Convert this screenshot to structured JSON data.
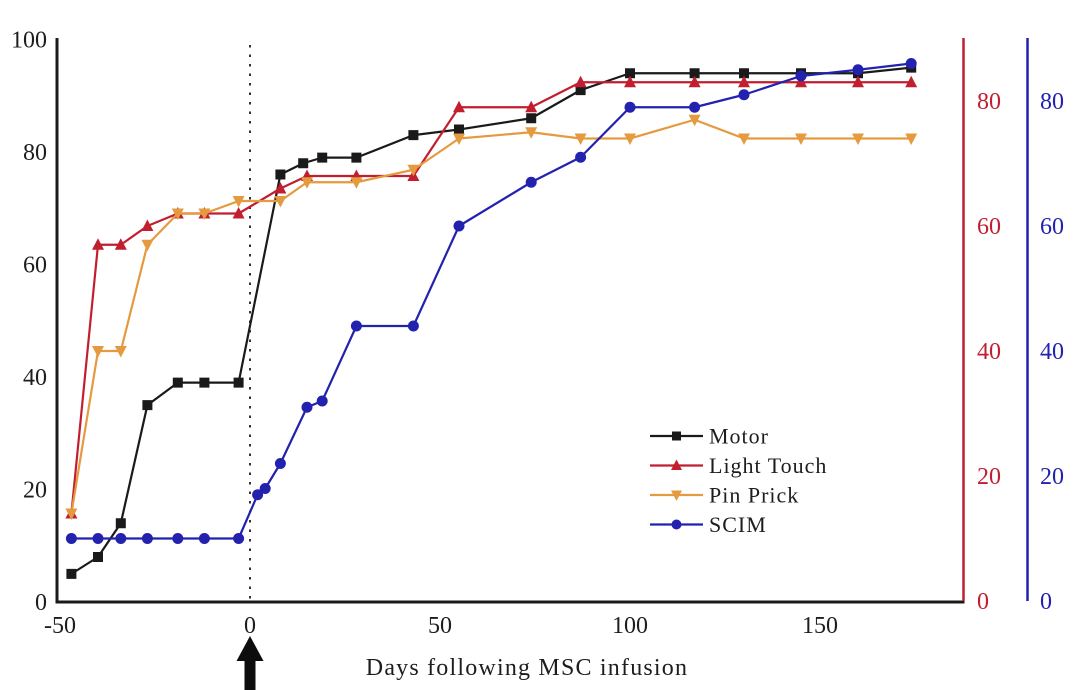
{
  "chart_data": {
    "type": "line",
    "title": "",
    "xlabel": "Days following MSC infusion",
    "x_ticks": [
      -50,
      0,
      50,
      100,
      150
    ],
    "x_range": [
      -51,
      188
    ],
    "infusion_marker_day": 0,
    "grid": "off",
    "axes": {
      "left": {
        "color": "#1a1a1a",
        "ticks": [
          0,
          20,
          40,
          60,
          80,
          100
        ],
        "range": [
          0,
          100
        ]
      },
      "right_red": {
        "color": "#c11f30",
        "ticks": [
          0,
          20,
          40,
          60,
          80
        ],
        "range": [
          0,
          90
        ]
      },
      "right_blue": {
        "color": "#2222ae",
        "ticks": [
          0,
          20,
          40,
          60,
          80
        ],
        "range": [
          0,
          90
        ]
      }
    },
    "legend": {
      "position": "right-center",
      "items": [
        "Motor",
        "Light Touch",
        "Pin Prick",
        "SCIM"
      ]
    },
    "series": [
      {
        "name": "Motor",
        "color": "#1a1a1a",
        "marker": "square",
        "axis": "left",
        "points": [
          [
            -47,
            5
          ],
          [
            -40,
            8
          ],
          [
            -34,
            14
          ],
          [
            -27,
            35
          ],
          [
            -19,
            39
          ],
          [
            -12,
            39
          ],
          [
            -3,
            39
          ],
          [
            8,
            76
          ],
          [
            14,
            78
          ],
          [
            19,
            79
          ],
          [
            28,
            79
          ],
          [
            43,
            83
          ],
          [
            55,
            84
          ],
          [
            74,
            86
          ],
          [
            87,
            91
          ],
          [
            100,
            94
          ],
          [
            117,
            94
          ],
          [
            130,
            94
          ],
          [
            145,
            94
          ],
          [
            160,
            94
          ],
          [
            174,
            95
          ]
        ]
      },
      {
        "name": "Light Touch",
        "color": "#c11f30",
        "marker": "triangle-up",
        "axis": "right",
        "points": [
          [
            -47,
            14
          ],
          [
            -40,
            57
          ],
          [
            -34,
            57
          ],
          [
            -27,
            60
          ],
          [
            -19,
            62
          ],
          [
            -12,
            62
          ],
          [
            -3,
            62
          ],
          [
            8,
            66
          ],
          [
            15,
            68
          ],
          [
            28,
            68
          ],
          [
            43,
            68
          ],
          [
            55,
            79
          ],
          [
            74,
            79
          ],
          [
            87,
            83
          ],
          [
            100,
            83
          ],
          [
            117,
            83
          ],
          [
            130,
            83
          ],
          [
            145,
            83
          ],
          [
            160,
            83
          ],
          [
            174,
            83
          ]
        ]
      },
      {
        "name": "Pin Prick",
        "color": "#e59a40",
        "marker": "triangle-down",
        "axis": "right",
        "points": [
          [
            -47,
            14
          ],
          [
            -40,
            40
          ],
          [
            -34,
            40
          ],
          [
            -27,
            57
          ],
          [
            -19,
            62
          ],
          [
            -12,
            62
          ],
          [
            -3,
            64
          ],
          [
            8,
            64
          ],
          [
            15,
            67
          ],
          [
            28,
            67
          ],
          [
            43,
            69
          ],
          [
            55,
            74
          ],
          [
            74,
            75
          ],
          [
            87,
            74
          ],
          [
            100,
            74
          ],
          [
            117,
            77
          ],
          [
            130,
            74
          ],
          [
            145,
            74
          ],
          [
            160,
            74
          ],
          [
            174,
            74
          ]
        ]
      },
      {
        "name": "SCIM",
        "color": "#2222ae",
        "marker": "circle",
        "axis": "right",
        "points": [
          [
            -47,
            10
          ],
          [
            -40,
            10
          ],
          [
            -34,
            10
          ],
          [
            -27,
            10
          ],
          [
            -19,
            10
          ],
          [
            -12,
            10
          ],
          [
            -3,
            10
          ],
          [
            2,
            17
          ],
          [
            4,
            18
          ],
          [
            8,
            22
          ],
          [
            15,
            31
          ],
          [
            19,
            32
          ],
          [
            28,
            44
          ],
          [
            43,
            44
          ],
          [
            55,
            60
          ],
          [
            74,
            67
          ],
          [
            87,
            71
          ],
          [
            100,
            79
          ],
          [
            117,
            79
          ],
          [
            130,
            81
          ],
          [
            145,
            84
          ],
          [
            160,
            85
          ],
          [
            174,
            86
          ]
        ]
      }
    ]
  }
}
